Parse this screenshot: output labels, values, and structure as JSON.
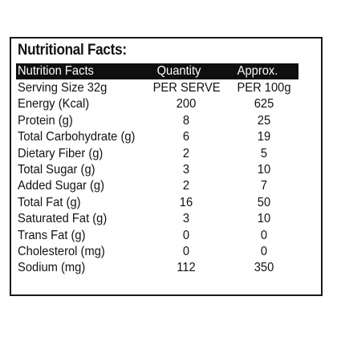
{
  "title": "Nutritional Facts:",
  "header": {
    "col1": "Nutrition Facts",
    "col2": "Quantity",
    "col3": "Approx."
  },
  "rows": [
    {
      "label": "Serving Size 32g",
      "qty": "PER SERVE",
      "approx": "PER 100g"
    },
    {
      "label": "Energy (Kcal)",
      "qty": "200",
      "approx": "625"
    },
    {
      "label": "Protein (g)",
      "qty": "8",
      "approx": "25"
    },
    {
      "label": "Total Carbohydrate (g)",
      "qty": "6",
      "approx": "19"
    },
    {
      "label": "Dietary Fiber (g)",
      "qty": "2",
      "approx": "5"
    },
    {
      "label": "Total Sugar (g)",
      "qty": "3",
      "approx": "10"
    },
    {
      "label": "Added Sugar (g)",
      "qty": "2",
      "approx": "7"
    },
    {
      "label": "Total Fat (g)",
      "qty": "16",
      "approx": "50"
    },
    {
      "label": "Saturated Fat (g)",
      "qty": "3",
      "approx": "10"
    },
    {
      "label": "Trans Fat (g)",
      "qty": "0",
      "approx": "0"
    },
    {
      "label": "Cholesterol (mg)",
      "qty": "0",
      "approx": "0"
    },
    {
      "label": "Sodium (mg)",
      "qty": "112",
      "approx": "350"
    }
  ]
}
